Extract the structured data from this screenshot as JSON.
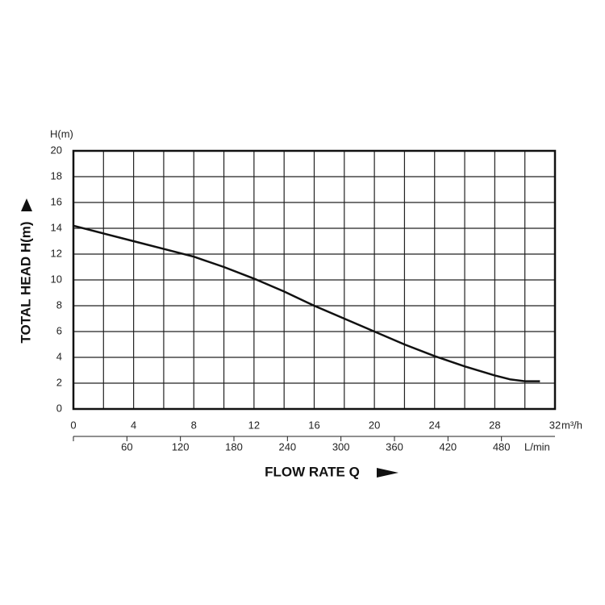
{
  "chart_data": {
    "type": "line",
    "y_axis_unit": "H(m)",
    "y_axis_title": "TOTAL HEAD H(m)",
    "x_axis_title": "FLOW RATE Q",
    "x_axis_unit": "m³/h",
    "x2_axis_unit": "L/min",
    "x": [
      0,
      2,
      4,
      6,
      8,
      10,
      12,
      14,
      16,
      18,
      20,
      22,
      24,
      26,
      28,
      29,
      30,
      31
    ],
    "series": [
      {
        "color": "#111111",
        "values": [
          14.2,
          13.6,
          13.0,
          12.4,
          11.8,
          11.0,
          10.1,
          9.1,
          8.0,
          7.0,
          6.0,
          5.0,
          4.1,
          3.3,
          2.6,
          2.3,
          2.15,
          2.15
        ]
      }
    ],
    "xlim": [
      0,
      32
    ],
    "xticks": [
      0,
      4,
      8,
      12,
      16,
      20,
      24,
      28,
      32
    ],
    "xgrid": [
      2,
      4,
      6,
      8,
      10,
      12,
      14,
      16,
      18,
      20,
      22,
      24,
      26,
      28,
      30
    ],
    "x2lim": [
      0,
      540
    ],
    "x2ticks": [
      60,
      120,
      180,
      240,
      300,
      360,
      420,
      480
    ],
    "ylim": [
      0,
      20
    ],
    "yticks": [
      0,
      2,
      4,
      6,
      8,
      10,
      12,
      14,
      16,
      18,
      20
    ],
    "grid": true
  }
}
